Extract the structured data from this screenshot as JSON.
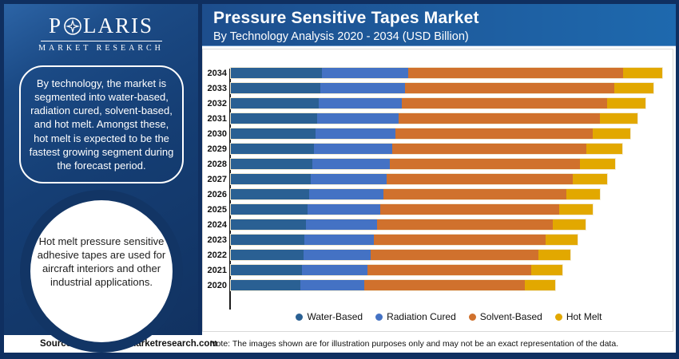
{
  "brand": {
    "logo_title_part1": "P",
    "logo_title_part2": "LARIS",
    "logo_subtitle": "MARKET RESEARCH"
  },
  "sidebar": {
    "callout_text": "By technology, the market is segmented into water-based, radiation cured, solvent-based, and hot melt. Amongst these, hot melt is expected to be the fastest growing segment during the forecast period.",
    "circle_text": "Hot melt pressure sensitive adhesive tapes are used for aircraft interiors and other industrial applications."
  },
  "header": {
    "title": "Pressure Sensitive Tapes Market",
    "subtitle": "By Technology Analysis 2020 - 2034 (USD Billion)"
  },
  "footer": {
    "source": "Source:www.polarismarketresearch.com",
    "note": "Note: The images shown are for illustration purposes only and may not be an exact representation of the data."
  },
  "colors": {
    "frame_navy": "#0f2f60",
    "sidebar_blue": "#153e74",
    "water_based": "#2a6093",
    "radiation_cured": "#4472c4",
    "solvent_based": "#d0712d",
    "hot_melt": "#e2a800"
  },
  "chart_data": {
    "type": "bar",
    "orientation": "horizontal",
    "stacked": true,
    "title": "Pressure Sensitive Tapes Market",
    "subtitle": "By Technology Analysis 2020 - 2034 (USD Billion)",
    "unit": "USD Billion",
    "axis_note": "x-axis has no tick labels in the image; segment values are relative units estimated from bar lengths",
    "grid": false,
    "legend_position": "bottom",
    "categories": [
      "2034",
      "2033",
      "2032",
      "2031",
      "2030",
      "2029",
      "2028",
      "2027",
      "2026",
      "2025",
      "2024",
      "2023",
      "2022",
      "2021",
      "2020"
    ],
    "x_max_relative": 550,
    "series": [
      {
        "name": "Water-Based",
        "color": "#2a6093",
        "values": [
          115,
          113,
          111,
          109,
          107,
          105,
          103,
          101,
          99,
          97,
          95,
          93,
          91,
          89,
          87
        ]
      },
      {
        "name": "Radiation Cured",
        "color": "#4472c4",
        "values": [
          108,
          106,
          104,
          102,
          100,
          98,
          97,
          95,
          93,
          91,
          89,
          87,
          85,
          83,
          81
        ]
      },
      {
        "name": "Solvent-Based",
        "color": "#d0712d",
        "values": [
          271,
          264,
          259,
          254,
          249,
          244,
          239,
          234,
          230,
          225,
          221,
          216,
          211,
          206,
          202
        ]
      },
      {
        "name": "Hot Melt",
        "color": "#e2a800",
        "values": [
          49,
          49,
          48,
          47,
          47,
          46,
          45,
          44,
          43,
          42,
          41,
          40,
          40,
          39,
          38
        ]
      }
    ]
  }
}
